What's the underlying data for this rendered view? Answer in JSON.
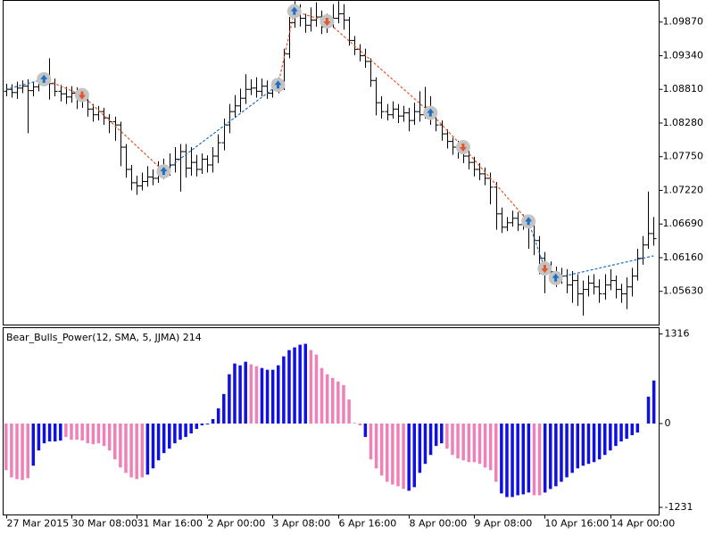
{
  "chart_data": [
    {
      "type": "ohlc",
      "color": "#000000",
      "xlim": [
        -0.5,
        120
      ],
      "ylim": [
        1.051,
        1.1021
      ],
      "yticks": [
        {
          "value": 1.0987,
          "label": "1.09870"
        },
        {
          "value": 1.0934,
          "label": "1.09340"
        },
        {
          "value": 1.0881,
          "label": "1.08810"
        },
        {
          "value": 1.0828,
          "label": "1.08280"
        },
        {
          "value": 1.0775,
          "label": "1.07750"
        },
        {
          "value": 1.0722,
          "label": "1.07220"
        },
        {
          "value": 1.0669,
          "label": "1.06690"
        },
        {
          "value": 1.0616,
          "label": "1.06160"
        },
        {
          "value": 1.0563,
          "label": "1.05630"
        }
      ],
      "open": [
        1.0878,
        1.0881,
        1.0876,
        1.0883,
        1.0886,
        1.0879,
        1.0885,
        1.0892,
        1.0897,
        1.089,
        1.0878,
        1.0874,
        1.0869,
        1.0875,
        1.0867,
        1.0864,
        1.085,
        1.0841,
        1.0846,
        1.0836,
        1.083,
        1.0825,
        1.079,
        1.0755,
        1.0734,
        1.0729,
        1.0736,
        1.0743,
        1.0741,
        1.075,
        1.0755,
        1.0762,
        1.0771,
        1.0783,
        1.0757,
        1.0766,
        1.0755,
        1.0771,
        1.0762,
        1.0776,
        1.0797,
        1.0825,
        1.0846,
        1.0855,
        1.0867,
        1.0881,
        1.0883,
        1.0878,
        1.0886,
        1.0875,
        1.0885,
        1.0888,
        1.0937,
        1.0986,
        1.1004,
        1.0993,
        1.0982,
        1.099,
        1.0995,
        1.0979,
        1.0987,
        1.0993,
        1.1,
        1.099,
        1.0958,
        1.0944,
        1.0934,
        1.0925,
        1.0895,
        1.086,
        1.0846,
        1.0841,
        1.085,
        1.0839,
        1.0844,
        1.0832,
        1.0846,
        1.0841,
        1.0853,
        1.0836,
        1.0825,
        1.0811,
        1.0799,
        1.079,
        1.0783,
        1.0776,
        1.0766,
        1.0755,
        1.0748,
        1.0741,
        1.0727,
        1.0685,
        1.0664,
        1.0671,
        1.0678,
        1.0668,
        1.0673,
        1.0671,
        1.0643,
        1.0615,
        1.0601,
        1.0594,
        1.0584,
        1.0587,
        1.0573,
        1.058,
        1.0559,
        1.0566,
        1.0576,
        1.057,
        1.0559,
        1.0573,
        1.058,
        1.0566,
        1.0559,
        1.057,
        1.0587,
        1.0615,
        1.0636,
        1.0654
      ],
      "high": [
        1.089,
        1.0889,
        1.0893,
        1.0895,
        1.0897,
        1.0893,
        1.0902,
        1.0906,
        1.093,
        1.0898,
        1.0888,
        1.0885,
        1.0886,
        1.0884,
        1.088,
        1.0872,
        1.0858,
        1.0855,
        1.0852,
        1.0842,
        1.0838,
        1.083,
        1.0795,
        1.0762,
        1.0745,
        1.075,
        1.076,
        1.0755,
        1.0768,
        1.0772,
        1.078,
        1.079,
        1.0795,
        1.0795,
        1.079,
        1.0778,
        1.078,
        1.0777,
        1.079,
        1.081,
        1.0835,
        1.0858,
        1.0872,
        1.0882,
        1.0905,
        1.0897,
        1.09,
        1.0898,
        1.0895,
        1.0895,
        1.09,
        1.0945,
        1.0995,
        1.102,
        1.1015,
        1.1,
        1.101,
        1.1018,
        1.1005,
        1.1,
        1.1015,
        1.102,
        1.1015,
        1.0995,
        1.0965,
        1.0952,
        1.0945,
        1.093,
        1.09,
        1.087,
        1.0858,
        1.0862,
        1.0858,
        1.0855,
        1.0852,
        1.086,
        1.0878,
        1.0885,
        1.087,
        1.0845,
        1.0832,
        1.0818,
        1.0805,
        1.08,
        1.0795,
        1.0785,
        1.0775,
        1.0765,
        1.0758,
        1.075,
        1.0735,
        1.0695,
        1.068,
        1.069,
        1.0688,
        1.0684,
        1.0682,
        1.0676,
        1.065,
        1.0625,
        1.061,
        1.0602,
        1.06,
        1.0598,
        1.0595,
        1.059,
        1.058,
        1.0588,
        1.059,
        1.0582,
        1.059,
        1.0598,
        1.0588,
        1.0575,
        1.0585,
        1.06,
        1.063,
        1.065,
        1.072,
        1.068
      ],
      "low": [
        1.087,
        1.0868,
        1.0866,
        1.0875,
        1.0812,
        1.087,
        1.0878,
        1.0886,
        1.0865,
        1.087,
        1.0862,
        1.0858,
        1.086,
        1.085,
        1.0852,
        1.0838,
        1.083,
        1.0832,
        1.0825,
        1.0812,
        1.08,
        1.076,
        1.0742,
        1.0722,
        1.0715,
        1.0722,
        1.0728,
        1.073,
        1.0734,
        1.074,
        1.0745,
        1.075,
        1.072,
        1.0742,
        1.0745,
        1.0744,
        1.0748,
        1.075,
        1.075,
        1.0765,
        1.0785,
        1.0812,
        1.0836,
        1.0845,
        1.0858,
        1.0872,
        1.0868,
        1.087,
        1.0866,
        1.0868,
        1.0875,
        1.088,
        1.093,
        1.0978,
        1.098,
        1.097,
        1.0972,
        1.098,
        1.0968,
        1.097,
        1.0978,
        1.0985,
        1.0975,
        1.095,
        1.0935,
        1.0925,
        1.0915,
        1.0885,
        1.084,
        1.0835,
        1.0832,
        1.0835,
        1.0828,
        1.083,
        1.0815,
        1.0825,
        1.083,
        1.0835,
        1.0825,
        1.0815,
        1.08,
        1.0788,
        1.0778,
        1.0772,
        1.0765,
        1.0755,
        1.0744,
        1.0738,
        1.073,
        1.07,
        1.066,
        1.0655,
        1.0658,
        1.0665,
        1.0658,
        1.066,
        1.063,
        1.062,
        1.059,
        1.056,
        1.0578,
        1.057,
        1.0575,
        1.056,
        1.0545,
        1.054,
        1.0525,
        1.0555,
        1.0558,
        1.0545,
        1.055,
        1.0565,
        1.0552,
        1.0545,
        1.0535,
        1.0555,
        1.058,
        1.0605,
        1.063,
        1.0635
      ],
      "close": [
        1.0881,
        1.0876,
        1.0883,
        1.0886,
        1.0879,
        1.0885,
        1.0892,
        1.0897,
        1.089,
        1.0878,
        1.0874,
        1.0869,
        1.0875,
        1.0867,
        1.0864,
        1.085,
        1.0841,
        1.0846,
        1.0836,
        1.083,
        1.0825,
        1.079,
        1.0755,
        1.0734,
        1.0729,
        1.0736,
        1.0743,
        1.0741,
        1.075,
        1.0755,
        1.0762,
        1.0771,
        1.0783,
        1.0757,
        1.0766,
        1.0755,
        1.0771,
        1.0762,
        1.0776,
        1.0797,
        1.0825,
        1.0846,
        1.0855,
        1.0867,
        1.0881,
        1.0883,
        1.0878,
        1.0886,
        1.0875,
        1.0885,
        1.0888,
        1.0937,
        1.0986,
        1.1004,
        1.0993,
        1.0982,
        1.099,
        1.0995,
        1.0979,
        1.0987,
        1.0993,
        1.1,
        1.099,
        1.0958,
        1.0944,
        1.0934,
        1.0925,
        1.0895,
        1.086,
        1.0846,
        1.0841,
        1.085,
        1.0839,
        1.0844,
        1.0832,
        1.0846,
        1.0841,
        1.0853,
        1.0836,
        1.0825,
        1.0811,
        1.0799,
        1.079,
        1.0783,
        1.0776,
        1.0766,
        1.0755,
        1.0748,
        1.0741,
        1.0727,
        1.0685,
        1.0664,
        1.0671,
        1.0678,
        1.0668,
        1.0673,
        1.0671,
        1.0643,
        1.0615,
        1.0601,
        1.0594,
        1.0584,
        1.0587,
        1.0573,
        1.058,
        1.0559,
        1.0566,
        1.0576,
        1.057,
        1.0559,
        1.0573,
        1.058,
        1.0566,
        1.0559,
        1.057,
        1.0587,
        1.0615,
        1.0636,
        1.0654,
        1.0646
      ],
      "trend_line": {
        "x": [
          0,
          7,
          14,
          29,
          50,
          53,
          59,
          78,
          84,
          96,
          99,
          101,
          119
        ],
        "values": [
          1.0881,
          1.0897,
          1.0872,
          1.0752,
          1.0888,
          1.1004,
          1.0988,
          1.0844,
          1.079,
          1.0673,
          1.0599,
          1.0584,
          1.0619
        ],
        "colors": [
          "#1e6fc7",
          "#e8542a",
          "#e8542a",
          "#1e6fc7",
          "#e8542a",
          "#e8542a",
          "#e8542a",
          "#e8542a",
          "#e8542a",
          "#1e6fc7",
          "#1e6fc7",
          "#1e6fc7"
        ]
      },
      "signals": [
        {
          "x": 7,
          "value": 1.0897,
          "direction": "up",
          "color": "#1e6fc7"
        },
        {
          "x": 14,
          "value": 1.0872,
          "direction": "down",
          "color": "#e8542a"
        },
        {
          "x": 29,
          "value": 1.0752,
          "direction": "up",
          "color": "#1e6fc7"
        },
        {
          "x": 50,
          "value": 1.0888,
          "direction": "up",
          "color": "#1e6fc7"
        },
        {
          "x": 53,
          "value": 1.1004,
          "direction": "up",
          "color": "#1e6fc7"
        },
        {
          "x": 59,
          "value": 1.0988,
          "direction": "down",
          "color": "#e8542a"
        },
        {
          "x": 78,
          "value": 1.0844,
          "direction": "up",
          "color": "#1e6fc7"
        },
        {
          "x": 84,
          "value": 1.079,
          "direction": "down",
          "color": "#e8542a"
        },
        {
          "x": 96,
          "value": 1.0673,
          "direction": "up",
          "color": "#1e6fc7"
        },
        {
          "x": 99,
          "value": 1.0599,
          "direction": "down",
          "color": "#e8542a"
        },
        {
          "x": 101,
          "value": 1.0584,
          "direction": "up",
          "color": "#1e6fc7"
        }
      ]
    },
    {
      "type": "bar",
      "title": "Bear_Bulls_Power(12, SMA, 5, JJMA) 214",
      "xlim": [
        -0.5,
        120
      ],
      "ylim": [
        -1342,
        1408
      ],
      "yticks": [
        1316,
        0,
        -1231
      ],
      "xticks": [
        {
          "value": 0,
          "label": "27 Mar 2015"
        },
        {
          "value": 12,
          "label": "30 Mar 08:00"
        },
        {
          "value": 24,
          "label": "31 Mar 16:00"
        },
        {
          "value": 37,
          "label": "2 Apr 00:00"
        },
        {
          "value": 49,
          "label": "3 Apr 08:00"
        },
        {
          "value": 61,
          "label": "6 Apr 16:00"
        },
        {
          "value": 74,
          "label": "8 Apr 00:00"
        },
        {
          "value": 86,
          "label": "9 Apr 08:00"
        },
        {
          "value": 99,
          "label": "10 Apr 16:00"
        },
        {
          "value": 111,
          "label": "14 Apr 00:00"
        }
      ],
      "values": [
        -684,
        -790,
        -816,
        -829,
        -803,
        -619,
        -395,
        -290,
        -263,
        -263,
        -250,
        -197,
        -237,
        -237,
        -250,
        -290,
        -303,
        -290,
        -329,
        -395,
        -526,
        -645,
        -724,
        -790,
        -816,
        -790,
        -750,
        -658,
        -540,
        -434,
        -368,
        -290,
        -237,
        -197,
        -145,
        -79,
        -26,
        -13,
        66,
        224,
        434,
        724,
        882,
        855,
        908,
        869,
        842,
        816,
        790,
        790,
        855,
        987,
        1079,
        1119,
        1158,
        1171,
        1079,
        1013,
        816,
        724,
        671,
        618,
        566,
        355,
        10,
        -26,
        -197,
        -526,
        -658,
        -763,
        -855,
        -895,
        -921,
        -961,
        -987,
        -934,
        -724,
        -592,
        -461,
        -329,
        -290,
        -368,
        -461,
        -513,
        -540,
        -566,
        -566,
        -592,
        -645,
        -684,
        -855,
        -1026,
        -1079,
        -1079,
        -1053,
        -1040,
        -1013,
        -1053,
        -1053,
        -1013,
        -961,
        -921,
        -855,
        -790,
        -724,
        -658,
        -619,
        -592,
        -566,
        -526,
        -461,
        -395,
        -329,
        -263,
        -224,
        -171,
        -132,
        0,
        395,
        632
      ],
      "colors": [
        "#f080b8",
        "#f080b8",
        "#f080b8",
        "#f080b8",
        "#f080b8",
        "#1010e0",
        "#1010e0",
        "#1010e0",
        "#1010e0",
        "#1010e0",
        "#1010e0",
        "#f080b8",
        "#f080b8",
        "#f080b8",
        "#f080b8",
        "#f080b8",
        "#f080b8",
        "#f080b8",
        "#f080b8",
        "#f080b8",
        "#f080b8",
        "#f080b8",
        "#f080b8",
        "#f080b8",
        "#f080b8",
        "#f080b8",
        "#1010e0",
        "#1010e0",
        "#1010e0",
        "#1010e0",
        "#1010e0",
        "#1010e0",
        "#1010e0",
        "#1010e0",
        "#1010e0",
        "#1010e0",
        "#1010e0",
        "#1010e0",
        "#1010e0",
        "#1010e0",
        "#1010e0",
        "#1010e0",
        "#1010e0",
        "#1010e0",
        "#1010e0",
        "#f080b8",
        "#f080b8",
        "#1010e0",
        "#1010e0",
        "#1010e0",
        "#1010e0",
        "#1010e0",
        "#1010e0",
        "#1010e0",
        "#1010e0",
        "#1010e0",
        "#f080b8",
        "#f080b8",
        "#f080b8",
        "#f080b8",
        "#f080b8",
        "#f080b8",
        "#f080b8",
        "#f080b8",
        "#f080b8",
        "#f080b8",
        "#1010e0",
        "#f080b8",
        "#f080b8",
        "#f080b8",
        "#f080b8",
        "#f080b8",
        "#f080b8",
        "#f080b8",
        "#1010e0",
        "#1010e0",
        "#1010e0",
        "#1010e0",
        "#1010e0",
        "#1010e0",
        "#1010e0",
        "#f080b8",
        "#f080b8",
        "#f080b8",
        "#f080b8",
        "#f080b8",
        "#f080b8",
        "#f080b8",
        "#f080b8",
        "#f080b8",
        "#f080b8",
        "#1010e0",
        "#1010e0",
        "#1010e0",
        "#1010e0",
        "#1010e0",
        "#1010e0",
        "#f080b8",
        "#f080b8",
        "#1010e0",
        "#1010e0",
        "#1010e0",
        "#1010e0",
        "#1010e0",
        "#1010e0",
        "#1010e0",
        "#1010e0",
        "#1010e0",
        "#1010e0",
        "#1010e0",
        "#1010e0",
        "#1010e0",
        "#1010e0",
        "#1010e0",
        "#1010e0",
        "#1010e0",
        "#1010e0",
        "#1010e0",
        "#1010e0",
        "#1010e0"
      ]
    }
  ]
}
